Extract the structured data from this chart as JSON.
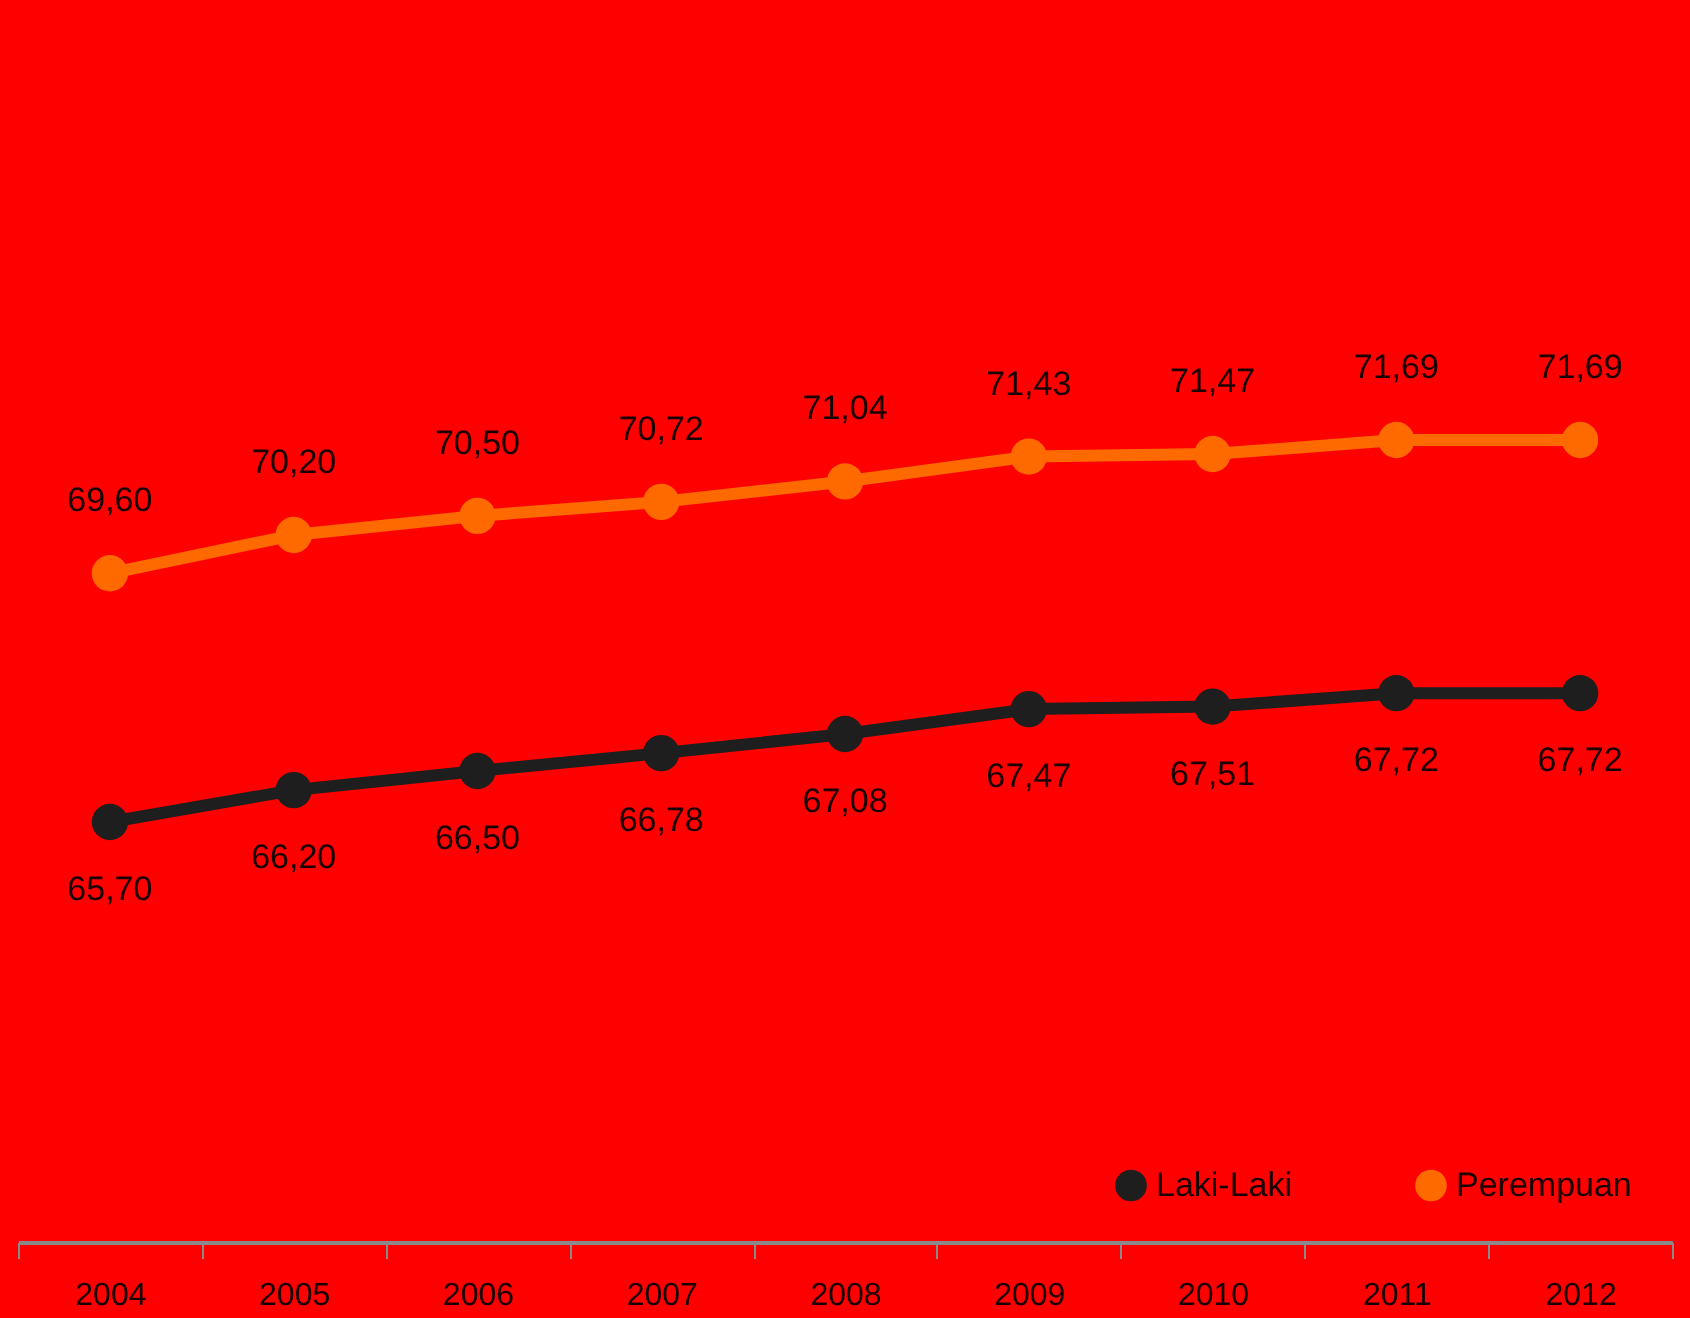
{
  "chart_data": {
    "type": "line",
    "categories": [
      "2004",
      "2005",
      "2006",
      "2007",
      "2008",
      "2009",
      "2010",
      "2011",
      "2012"
    ],
    "series": [
      {
        "name": "Laki-Laki",
        "color": "#1e1e1e",
        "values": [
          65.7,
          66.2,
          66.5,
          66.78,
          67.08,
          67.47,
          67.51,
          67.72,
          67.72
        ],
        "value_labels": [
          "65,70",
          "66,20",
          "66,50",
          "66,78",
          "67,08",
          "67,47",
          "67,51",
          "67,72",
          "67,72"
        ]
      },
      {
        "name": "Perempuan",
        "color": "#ff6a00",
        "values": [
          69.6,
          70.2,
          70.5,
          70.72,
          71.04,
          71.43,
          71.47,
          71.69,
          71.69
        ],
        "value_labels": [
          "69,60",
          "70,20",
          "70,50",
          "70,72",
          "71,04",
          "71,43",
          "71,47",
          "71,69",
          "71,69"
        ]
      }
    ],
    "tick_labels": "x",
    "grid": false,
    "legend": "bottom right",
    "marker": "circle",
    "line_style": "solid"
  }
}
